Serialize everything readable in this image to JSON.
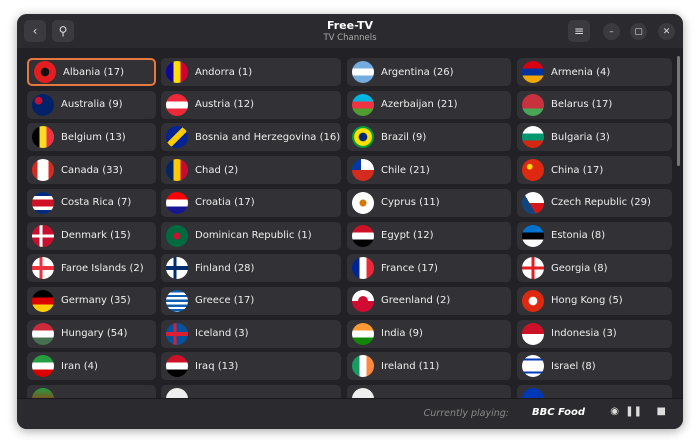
{
  "header": {
    "title": "Free-TV",
    "subtitle": "TV Channels",
    "back_icon": "chevron-left-icon",
    "search_icon": "search-icon",
    "menu_icon": "hamburger-menu-icon"
  },
  "window_controls": {
    "minimize": "minimize-icon",
    "maximize": "maximize-icon",
    "close": "close-icon"
  },
  "accent": "#e8773f",
  "countries": [
    {
      "label": "Albania (17)",
      "flag": "radial-gradient(circle,#111 25%,#e41e20 30%)"
    },
    {
      "label": "Andorra (1)",
      "flag": "linear-gradient(90deg,#10069f 33%,#fedf00 33% 66%,#d50032 66%)"
    },
    {
      "label": "Argentina (26)",
      "flag": "linear-gradient(#74acdf 33%,#fff 33% 66%,#74acdf 66%)"
    },
    {
      "label": "Armenia (4)",
      "flag": "linear-gradient(#d90012 33%,#0033a0 33% 66%,#f2a800 66%)"
    },
    {
      "label": "Australia (9)",
      "flag": "radial-gradient(circle at 30% 30%,#c8102e 15%,#012169 20%)"
    },
    {
      "label": "Austria (12)",
      "flag": "linear-gradient(#ed2939 33%,#fff 33% 66%,#ed2939 66%)"
    },
    {
      "label": "Azerbaijan (21)",
      "flag": "linear-gradient(#00b5e2 33%,#ef3340 33% 66%,#509e2f 66%)"
    },
    {
      "label": "Belarus (17)",
      "flag": "linear-gradient(#c8313e 66%,#4aa657 66%)"
    },
    {
      "label": "Belgium (13)",
      "flag": "linear-gradient(90deg,#000 33%,#fdda24 33% 66%,#ef3340 66%)"
    },
    {
      "label": "Bosnia and Herzegovina (16)",
      "flag": "linear-gradient(135deg,#002395 40%,#fecb00 40% 60%,#002395 60%)"
    },
    {
      "label": "Brazil (9)",
      "flag": "radial-gradient(circle,#002776 25%,#fedf00 30% 55%,#009c3b 60%)"
    },
    {
      "label": "Bulgaria (3)",
      "flag": "linear-gradient(#fff 33%,#00966e 33% 66%,#d62612 66%)"
    },
    {
      "label": "Canada (33)",
      "flag": "linear-gradient(90deg,#d52b1e 25%,#fff 25% 75%,#d52b1e 75%)"
    },
    {
      "label": "Chad (2)",
      "flag": "linear-gradient(90deg,#002664 33%,#fecb00 33% 66%,#c60c30 66%)"
    },
    {
      "label": "Chile (21)",
      "flag": "linear-gradient(90deg,#0039a6 40%,#fff 40%) top/100% 50% no-repeat,#d52b1e"
    },
    {
      "label": "China (17)",
      "flag": "radial-gradient(circle at 35% 35%,#ffde00 12%,#de2910 16%)"
    },
    {
      "label": "Costa Rica (7)",
      "flag": "linear-gradient(#002b7f 18%,#fff 18% 34%,#ce1126 34% 66%,#fff 66% 82%,#002b7f 82%)"
    },
    {
      "label": "Croatia (17)",
      "flag": "linear-gradient(#ff0000 33%,#fff 33% 66%,#171796 66%)"
    },
    {
      "label": "Cyprus (11)",
      "flag": "radial-gradient(circle,#d57800 20%,#fff 25%)"
    },
    {
      "label": "Czech Republic (29)",
      "flag": "linear-gradient(60deg,#11457e 40%,transparent 40%),linear-gradient(#fff 50%,#d7141a 50%)"
    },
    {
      "label": "Denmark (15)",
      "flag": "linear-gradient(90deg,transparent 35%,#fff 35% 48%,transparent 48%),linear-gradient(transparent 43%,#fff 43% 57%,#c8102e 57%),#c8102e"
    },
    {
      "label": "Dominican Republic (1)",
      "flag": "radial-gradient(circle,#d21034 20%,#006b3f 25%)"
    },
    {
      "label": "Egypt (12)",
      "flag": "linear-gradient(#ce1126 33%,#fff 33% 66%,#000 66%)"
    },
    {
      "label": "Estonia (8)",
      "flag": "linear-gradient(#0072ce 33%,#000 33% 66%,#fff 66%)"
    },
    {
      "label": "Faroe Islands (2)",
      "flag": "linear-gradient(90deg,transparent 33%,#ef303e 33% 48%,transparent 48%),linear-gradient(transparent 42%,#ef303e 42% 58%,#fff 58%),#fff"
    },
    {
      "label": "Finland (28)",
      "flag": "linear-gradient(90deg,transparent 33%,#002f6c 33% 48%,transparent 48%),linear-gradient(transparent 42%,#002f6c 42% 58%,#fff 58%),#fff"
    },
    {
      "label": "France (17)",
      "flag": "linear-gradient(90deg,#002395 33%,#fff 33% 66%,#ed2939 66%)"
    },
    {
      "label": "Georgia (8)",
      "flag": "linear-gradient(90deg,transparent 43%,#e41e20 43% 57%,transparent 57%),linear-gradient(transparent 43%,#e41e20 43% 57%,#fff 57%),#fff"
    },
    {
      "label": "Germany (35)",
      "flag": "linear-gradient(#000 33%,#dd0000 33% 66%,#ffce00 66%)"
    },
    {
      "label": "Greece (17)",
      "flag": "repeating-linear-gradient(#0d5eaf 0 2.4px,#fff 2.4px 4.8px)"
    },
    {
      "label": "Greenland (2)",
      "flag": "radial-gradient(circle,#d00c33 30%,transparent 33%),linear-gradient(#fff 50%,#d00c33 50%)"
    },
    {
      "label": "Hong Kong (5)",
      "flag": "radial-gradient(circle,#fff 25%,#de2910 30%)"
    },
    {
      "label": "Hungary (54)",
      "flag": "linear-gradient(#ce2939 33%,#fff 33% 66%,#477050 66%)"
    },
    {
      "label": "Iceland (3)",
      "flag": "linear-gradient(90deg,transparent 33%,#dc1e35 33% 48%,transparent 48%),linear-gradient(transparent 42%,#dc1e35 42% 58%,#02529c 58%),#02529c"
    },
    {
      "label": "India (9)",
      "flag": "linear-gradient(#ff9933 33%,#fff 33% 66%,#138808 66%)"
    },
    {
      "label": "Indonesia (3)",
      "flag": "linear-gradient(#ce1126 50%,#fff 50%)"
    },
    {
      "label": "Iran (4)",
      "flag": "linear-gradient(#239f40 33%,#fff 33% 66%,#da0000 66%)"
    },
    {
      "label": "Iraq (13)",
      "flag": "linear-gradient(#ce1126 33%,#fff 33% 66%,#000 66%)"
    },
    {
      "label": "Ireland (11)",
      "flag": "linear-gradient(90deg,#169b62 33%,#fff 33% 66%,#ff883e 66%)"
    },
    {
      "label": "Israel (8)",
      "flag": "linear-gradient(#fff 15%,#0038b8 15% 25%,#fff 25% 75%,#0038b8 75% 85%,#fff 85%)"
    },
    {
      "label": "",
      "flag": "linear-gradient(#239f40,#da0000)"
    },
    {
      "label": "",
      "flag": "#eee"
    },
    {
      "label": "",
      "flag": "#eee"
    },
    {
      "label": "",
      "flag": "#0038b8"
    }
  ],
  "player": {
    "currently_playing_label": "Currently playing:",
    "channel": "BBC Food",
    "eye_icon": "eye-icon",
    "pause_icon": "pause-icon",
    "stop_icon": "stop-icon"
  }
}
